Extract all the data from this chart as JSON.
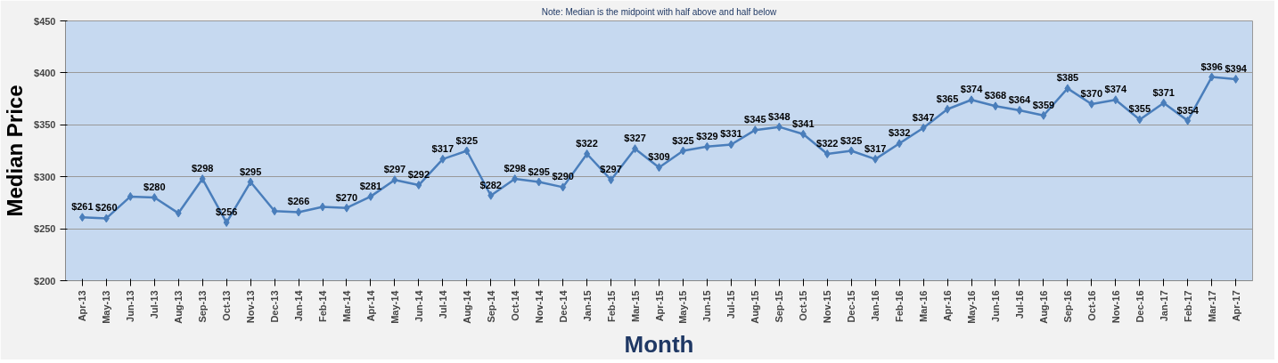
{
  "chart_data": {
    "type": "line",
    "subtitle": "Note: Median is the midpoint with half above and half below",
    "xlabel": "Month",
    "ylabel": "Median Price",
    "categories": [
      "Apr-13",
      "May-13",
      "Jun-13",
      "Jul-13",
      "Aug-13",
      "Sep-13",
      "Oct-13",
      "Nov-13",
      "Dec-13",
      "Jan-14",
      "Feb-14",
      "Mar-14",
      "Apr-14",
      "May-14",
      "Jun-14",
      "Jul-14",
      "Aug-14",
      "Sep-14",
      "Oct-14",
      "Nov-14",
      "Dec-14",
      "Jan-15",
      "Feb-15",
      "Mar-15",
      "Apr-15",
      "May-15",
      "Jun-15",
      "Jul-15",
      "Aug-15",
      "Sep-15",
      "Oct-15",
      "Nov-15",
      "Dec-15",
      "Jan-16",
      "Feb-16",
      "Mar-16",
      "Apr-16",
      "May-16",
      "Jun-16",
      "Jul-16",
      "Aug-16",
      "Sep-16",
      "Oct-16",
      "Nov-16",
      "Dec-16",
      "Jan-17",
      "Feb-17",
      "Mar-17",
      "Apr-17"
    ],
    "series": [
      {
        "color": "#4a7ebb",
        "values": [
          261,
          260,
          281,
          280,
          265,
          298,
          256,
          295,
          267,
          266,
          271,
          270,
          281,
          297,
          292,
          317,
          325,
          282,
          298,
          295,
          290,
          322,
          297,
          327,
          309,
          325,
          329,
          331,
          345,
          348,
          341,
          322,
          325,
          317,
          332,
          347,
          365,
          374,
          368,
          364,
          359,
          385,
          370,
          374,
          355,
          371,
          354,
          396,
          394
        ],
        "value_labels": [
          "$261",
          "$260",
          null,
          "$280",
          null,
          "$298",
          "$256",
          "$295",
          null,
          "$266",
          null,
          "$270",
          "$281",
          "$297",
          "$292",
          "$317",
          "$325",
          "$282",
          "$298",
          "$295",
          "$290",
          "$322",
          "$297",
          "$327",
          "$309",
          "$325",
          "$329",
          "$331",
          "$345",
          "$348",
          "$341",
          "$322",
          "$325",
          "$317",
          "$332",
          "$347",
          "$365",
          "$374",
          "$368",
          "$364",
          "$359",
          "$385",
          "$370",
          "$374",
          "$355",
          "$371",
          "$354",
          "$396",
          "$394"
        ]
      }
    ],
    "ylim": [
      200,
      450
    ],
    "yticks": [
      {
        "value": 200,
        "label": "$200"
      },
      {
        "value": 250,
        "label": "$250"
      },
      {
        "value": 300,
        "label": "$300"
      },
      {
        "value": 350,
        "label": "$350"
      },
      {
        "value": 400,
        "label": "$400"
      },
      {
        "value": 450,
        "label": "$450"
      }
    ],
    "grid": "y",
    "marker": "diamond",
    "line_style": "solid"
  }
}
